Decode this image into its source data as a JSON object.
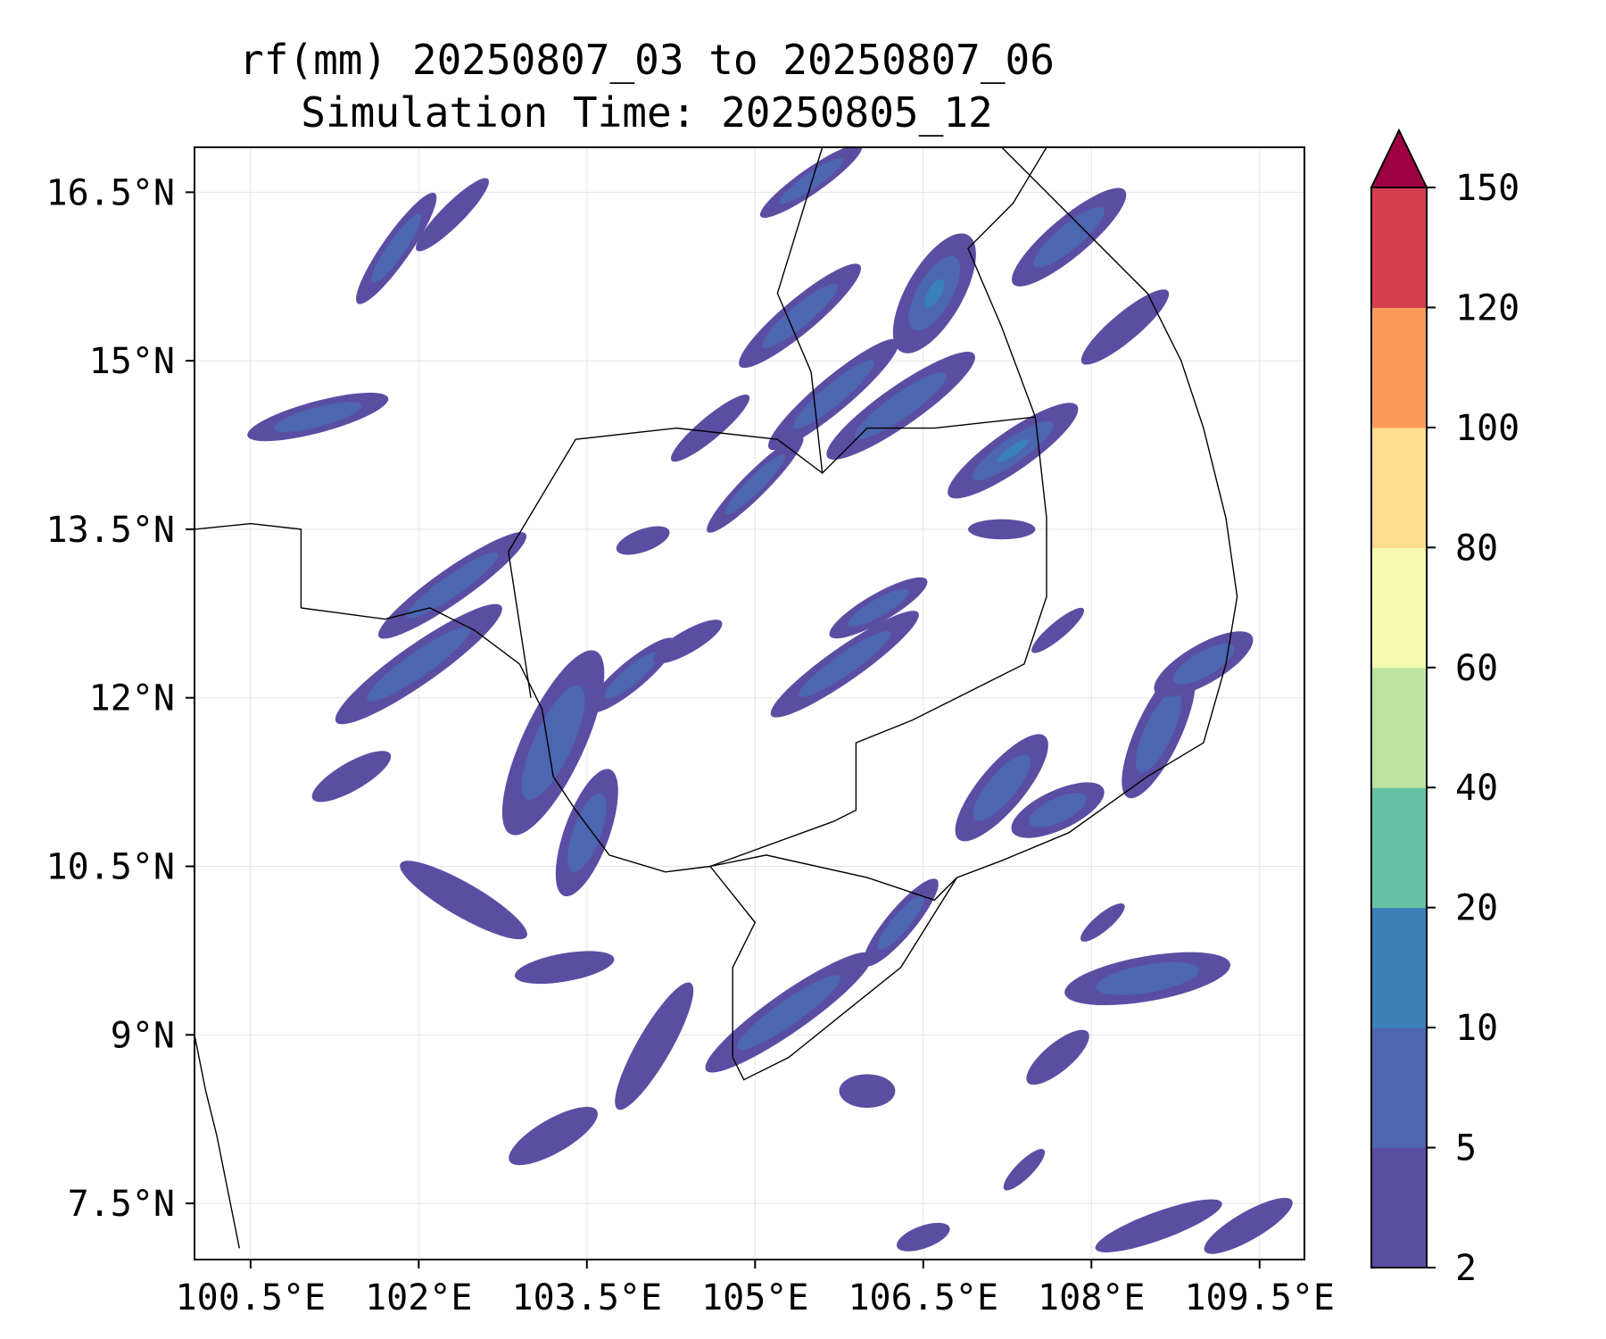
{
  "title": {
    "line1": "rf(mm) 20250807_03 to 20250807_06",
    "line2": "Simulation Time: 20250805_12"
  },
  "map": {
    "lon_range": [
      100.0,
      109.9
    ],
    "lat_range": [
      7.0,
      16.9
    ],
    "lon_ticks": [
      100.5,
      102,
      103.5,
      105,
      106.5,
      108,
      109.5
    ],
    "lon_tick_labels": [
      "100.5°E",
      "102°E",
      "103.5°E",
      "105°E",
      "106.5°E",
      "108°E",
      "109.5°E"
    ],
    "lat_ticks": [
      7.5,
      9,
      10.5,
      12,
      13.5,
      15,
      16.5
    ],
    "lat_tick_labels": [
      "7.5°N",
      "9°N",
      "10.5°N",
      "12°N",
      "13.5°N",
      "15°N",
      "16.5°N"
    ],
    "gridlines": true,
    "coastlines_color": "#000000"
  },
  "colorbar": {
    "levels": [
      2,
      5,
      10,
      20,
      40,
      60,
      80,
      100,
      120,
      150
    ],
    "tick_labels": [
      "2",
      "5",
      "10",
      "20",
      "40",
      "60",
      "80",
      "100",
      "120",
      "150"
    ],
    "colors": [
      "#5a4ea3",
      "#4d66b1",
      "#3a80b9",
      "#66c2a5",
      "#bde3a1",
      "#f3f9b0",
      "#fddd8e",
      "#f89b5a",
      "#d53e4f"
    ],
    "extend_color": "#9e0142",
    "extend": "max"
  },
  "rain_cells": [
    {
      "lon": 101.1,
      "lat": 14.5,
      "len": 1.3,
      "wid": 0.28,
      "rot": 15,
      "level": 1
    },
    {
      "lon": 101.8,
      "lat": 16.0,
      "len": 1.2,
      "wid": 0.25,
      "rot": 55,
      "level": 1
    },
    {
      "lon": 102.3,
      "lat": 16.3,
      "len": 0.9,
      "wid": 0.2,
      "rot": 45,
      "level": 0
    },
    {
      "lon": 102.3,
      "lat": 13.0,
      "len": 1.6,
      "wid": 0.3,
      "rot": 35,
      "level": 1
    },
    {
      "lon": 102.0,
      "lat": 12.3,
      "len": 1.8,
      "wid": 0.35,
      "rot": 35,
      "level": 1
    },
    {
      "lon": 103.2,
      "lat": 11.6,
      "len": 1.8,
      "wid": 0.55,
      "rot": 65,
      "level": 1
    },
    {
      "lon": 103.5,
      "lat": 10.8,
      "len": 1.2,
      "wid": 0.4,
      "rot": 70,
      "level": 1
    },
    {
      "lon": 102.4,
      "lat": 10.2,
      "len": 1.3,
      "wid": 0.3,
      "rot": -30,
      "level": 0
    },
    {
      "lon": 103.3,
      "lat": 9.6,
      "len": 0.9,
      "wid": 0.25,
      "rot": 10,
      "level": 0
    },
    {
      "lon": 103.9,
      "lat": 12.2,
      "len": 1.0,
      "wid": 0.25,
      "rot": 40,
      "level": 1
    },
    {
      "lon": 104.6,
      "lat": 14.4,
      "len": 0.9,
      "wid": 0.2,
      "rot": 40,
      "level": 0
    },
    {
      "lon": 105.0,
      "lat": 13.9,
      "len": 1.2,
      "wid": 0.22,
      "rot": 45,
      "level": 1
    },
    {
      "lon": 105.4,
      "lat": 15.4,
      "len": 1.4,
      "wid": 0.3,
      "rot": 40,
      "level": 1
    },
    {
      "lon": 105.7,
      "lat": 14.7,
      "len": 1.5,
      "wid": 0.3,
      "rot": 40,
      "level": 1
    },
    {
      "lon": 106.3,
      "lat": 14.6,
      "len": 1.6,
      "wid": 0.35,
      "rot": 35,
      "level": 1
    },
    {
      "lon": 106.6,
      "lat": 15.6,
      "len": 1.2,
      "wid": 0.5,
      "rot": 60,
      "level": 2
    },
    {
      "lon": 107.3,
      "lat": 14.2,
      "len": 1.4,
      "wid": 0.35,
      "rot": 35,
      "level": 2
    },
    {
      "lon": 107.8,
      "lat": 16.1,
      "len": 1.3,
      "wid": 0.35,
      "rot": 40,
      "level": 1
    },
    {
      "lon": 108.3,
      "lat": 15.3,
      "len": 1.0,
      "wid": 0.25,
      "rot": 40,
      "level": 0
    },
    {
      "lon": 105.5,
      "lat": 16.6,
      "len": 1.1,
      "wid": 0.22,
      "rot": 35,
      "level": 1
    },
    {
      "lon": 105.8,
      "lat": 12.3,
      "len": 1.6,
      "wid": 0.3,
      "rot": 35,
      "level": 1
    },
    {
      "lon": 106.1,
      "lat": 12.8,
      "len": 1.0,
      "wid": 0.25,
      "rot": 30,
      "level": 1
    },
    {
      "lon": 107.2,
      "lat": 11.2,
      "len": 1.2,
      "wid": 0.4,
      "rot": 50,
      "level": 1
    },
    {
      "lon": 107.7,
      "lat": 11.0,
      "len": 0.9,
      "wid": 0.35,
      "rot": 25,
      "level": 1
    },
    {
      "lon": 108.6,
      "lat": 11.7,
      "len": 1.3,
      "wid": 0.4,
      "rot": 65,
      "level": 1
    },
    {
      "lon": 109.0,
      "lat": 12.3,
      "len": 1.0,
      "wid": 0.35,
      "rot": 30,
      "level": 1
    },
    {
      "lon": 105.3,
      "lat": 9.2,
      "len": 1.8,
      "wid": 0.35,
      "rot": 35,
      "level": 1
    },
    {
      "lon": 106.3,
      "lat": 10.0,
      "len": 1.0,
      "wid": 0.25,
      "rot": 50,
      "level": 1
    },
    {
      "lon": 108.5,
      "lat": 9.5,
      "len": 1.5,
      "wid": 0.4,
      "rot": 10,
      "level": 1
    },
    {
      "lon": 104.1,
      "lat": 8.9,
      "len": 1.3,
      "wid": 0.3,
      "rot": 60,
      "level": 0
    },
    {
      "lon": 103.2,
      "lat": 8.1,
      "len": 0.9,
      "wid": 0.3,
      "rot": 30,
      "level": 0
    },
    {
      "lon": 106.0,
      "lat": 8.5,
      "len": 0.5,
      "wid": 0.3,
      "rot": 0,
      "level": 0
    },
    {
      "lon": 107.7,
      "lat": 8.8,
      "len": 0.7,
      "wid": 0.25,
      "rot": 40,
      "level": 0
    },
    {
      "lon": 108.6,
      "lat": 7.3,
      "len": 1.2,
      "wid": 0.25,
      "rot": 20,
      "level": 0
    },
    {
      "lon": 109.4,
      "lat": 7.3,
      "len": 0.9,
      "wid": 0.25,
      "rot": 30,
      "level": 0
    },
    {
      "lon": 106.5,
      "lat": 7.2,
      "len": 0.5,
      "wid": 0.2,
      "rot": 20,
      "level": 0
    },
    {
      "lon": 101.4,
      "lat": 11.3,
      "len": 0.8,
      "wid": 0.25,
      "rot": 30,
      "level": 0
    },
    {
      "lon": 104.4,
      "lat": 12.5,
      "len": 0.7,
      "wid": 0.2,
      "rot": 30,
      "level": 0
    },
    {
      "lon": 104.0,
      "lat": 13.4,
      "len": 0.5,
      "wid": 0.2,
      "rot": 20,
      "level": 0
    },
    {
      "lon": 107.2,
      "lat": 13.5,
      "len": 0.6,
      "wid": 0.18,
      "rot": 0,
      "level": 0
    },
    {
      "lon": 107.7,
      "lat": 12.6,
      "len": 0.6,
      "wid": 0.15,
      "rot": 40,
      "level": 0
    },
    {
      "lon": 108.1,
      "lat": 10.0,
      "len": 0.5,
      "wid": 0.15,
      "rot": 40,
      "level": 0
    },
    {
      "lon": 107.4,
      "lat": 7.8,
      "len": 0.5,
      "wid": 0.15,
      "rot": 45,
      "level": 0
    }
  ]
}
